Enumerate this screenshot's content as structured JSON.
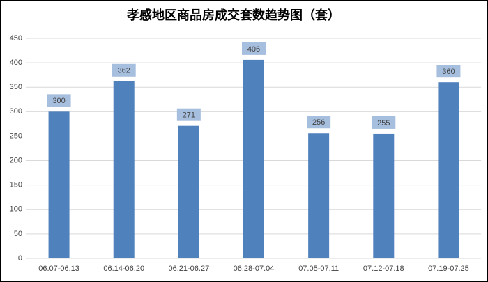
{
  "chart_data": {
    "type": "bar",
    "title": "孝感地区商品房成交套数趋势图（套）",
    "categories": [
      "06.07-06.13",
      "06.14-06.20",
      "06.21-06.27",
      "06.28-07.04",
      "07.05-07.11",
      "07.12-07.18",
      "07.19-07.25"
    ],
    "values": [
      300,
      362,
      271,
      406,
      256,
      255,
      360
    ],
    "color": "#4f81bd",
    "ylim": [
      0,
      450
    ],
    "yticks": [
      0,
      50,
      100,
      150,
      200,
      250,
      300,
      350,
      400,
      450
    ],
    "grid": true
  }
}
